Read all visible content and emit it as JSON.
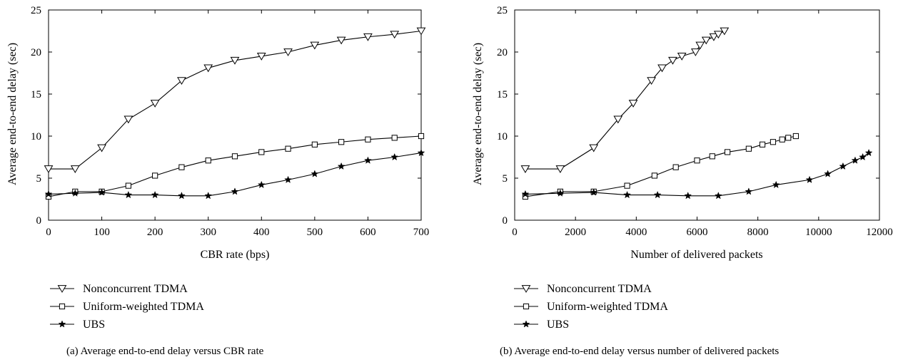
{
  "chart_data": [
    {
      "type": "line",
      "caption": "(a) Average end-to-end delay versus CBR rate",
      "xlabel": "CBR rate (bps)",
      "ylabel": "Average end-to-end delay (sec)",
      "xlim": [
        0,
        700
      ],
      "ylim": [
        0,
        25
      ],
      "xticks": [
        "0",
        "100",
        "200",
        "300",
        "400",
        "500",
        "600",
        "700"
      ],
      "yticks": [
        "0",
        "5",
        "10",
        "15",
        "20",
        "25"
      ],
      "grid": false,
      "legend_position": "below",
      "series": [
        {
          "name": "Nonconcurrent TDMA",
          "marker": "triangle-down",
          "x": [
            0,
            50,
            100,
            150,
            200,
            250,
            300,
            350,
            400,
            450,
            500,
            550,
            600,
            650,
            700
          ],
          "y": [
            6.1,
            6.1,
            8.6,
            12.0,
            13.9,
            16.6,
            18.1,
            19.0,
            19.5,
            20.0,
            20.8,
            21.4,
            21.8,
            22.1,
            22.5
          ]
        },
        {
          "name": "Uniform-weighted TDMA",
          "marker": "square",
          "x": [
            0,
            50,
            100,
            150,
            200,
            250,
            300,
            350,
            400,
            450,
            500,
            550,
            600,
            650,
            700
          ],
          "y": [
            2.8,
            3.4,
            3.4,
            4.1,
            5.3,
            6.3,
            7.1,
            7.6,
            8.1,
            8.5,
            9.0,
            9.3,
            9.6,
            9.8,
            10.0
          ]
        },
        {
          "name": "UBS",
          "marker": "star",
          "x": [
            0,
            50,
            100,
            150,
            200,
            250,
            300,
            350,
            400,
            450,
            500,
            550,
            600,
            650,
            700
          ],
          "y": [
            3.1,
            3.2,
            3.3,
            3.0,
            3.0,
            2.9,
            2.9,
            3.4,
            4.2,
            4.8,
            5.5,
            6.4,
            7.1,
            7.5,
            8.0
          ]
        }
      ]
    },
    {
      "type": "line",
      "caption": "(b) Average end-to-end delay versus number of delivered packets",
      "xlabel": "Number of delivered packets",
      "ylabel": "Average end-to-end delay (sec)",
      "xlim": [
        0,
        12000
      ],
      "ylim": [
        0,
        25
      ],
      "xticks": [
        "0",
        "2000",
        "4000",
        "6000",
        "8000",
        "10000",
        "12000"
      ],
      "yticks": [
        "0",
        "5",
        "10",
        "15",
        "20",
        "25"
      ],
      "grid": false,
      "legend_position": "below",
      "series": [
        {
          "name": "Nonconcurrent TDMA",
          "marker": "triangle-down",
          "x": [
            350,
            1500,
            2600,
            3400,
            3900,
            4500,
            4850,
            5200,
            5500,
            5950,
            6100,
            6300,
            6550,
            6700,
            6900
          ],
          "y": [
            6.1,
            6.1,
            8.6,
            12.0,
            13.9,
            16.6,
            18.1,
            19.0,
            19.5,
            20.0,
            20.8,
            21.4,
            21.8,
            22.1,
            22.5
          ]
        },
        {
          "name": "Uniform-weighted TDMA",
          "marker": "square",
          "x": [
            350,
            1500,
            2600,
            3700,
            4600,
            5300,
            6000,
            6500,
            7000,
            7700,
            8150,
            8500,
            8800,
            9000,
            9250
          ],
          "y": [
            2.8,
            3.4,
            3.4,
            4.1,
            5.3,
            6.3,
            7.1,
            7.6,
            8.1,
            8.5,
            9.0,
            9.3,
            9.6,
            9.8,
            10.0
          ]
        },
        {
          "name": "UBS",
          "marker": "star",
          "x": [
            350,
            1500,
            2600,
            3700,
            4700,
            5700,
            6700,
            7700,
            8600,
            9700,
            10300,
            10800,
            11200,
            11450,
            11650
          ],
          "y": [
            3.1,
            3.2,
            3.3,
            3.0,
            3.0,
            2.9,
            2.9,
            3.4,
            4.2,
            4.8,
            5.5,
            6.4,
            7.1,
            7.5,
            8.0
          ]
        }
      ]
    }
  ]
}
